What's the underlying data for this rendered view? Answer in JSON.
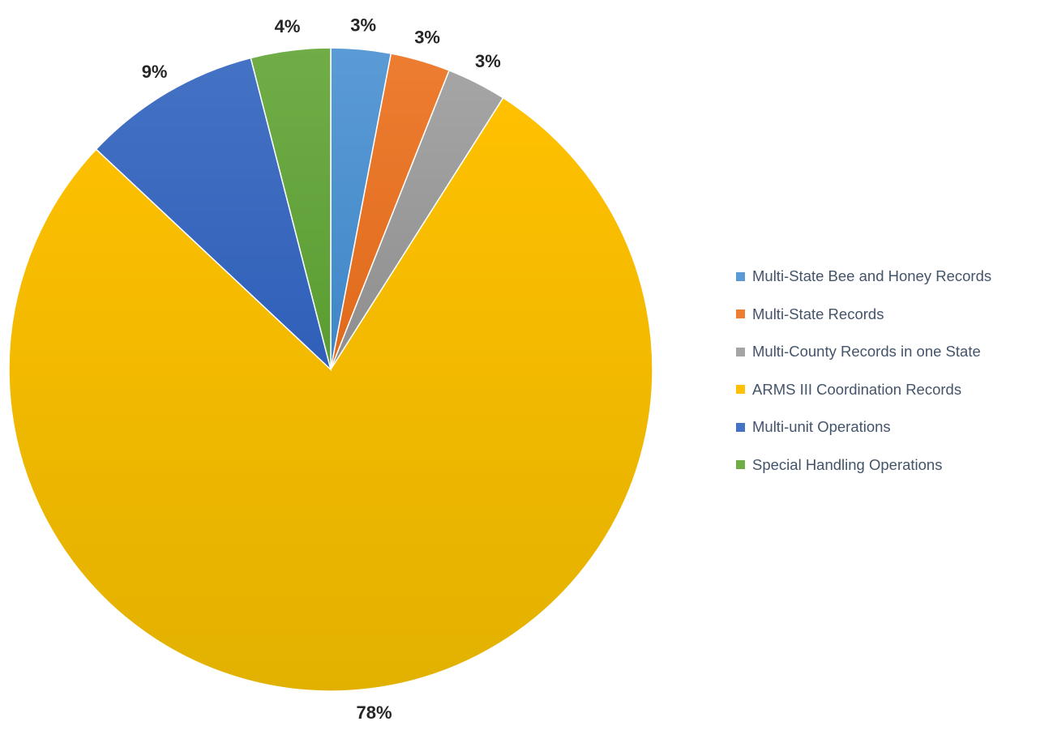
{
  "chart_data": {
    "type": "pie",
    "title": "",
    "legend_position": "right",
    "slices": [
      {
        "label": "Multi-State Bee and Honey Records",
        "value": 3,
        "display": "3%",
        "color": "#5b9bd5",
        "color_dark": "#3f86c8"
      },
      {
        "label": "Multi-State Records",
        "value": 3,
        "display": "3%",
        "color": "#ed7d31",
        "color_dark": "#e06a1b"
      },
      {
        "label": "Multi-County Records in one State",
        "value": 3,
        "display": "3%",
        "color": "#a5a5a5",
        "color_dark": "#8e8e8e"
      },
      {
        "label": "ARMS III Coordination Records",
        "value": 78,
        "display": "78%",
        "color": "#ffc000",
        "color_dark": "#e2b100"
      },
      {
        "label": "Multi-unit Operations",
        "value": 9,
        "display": "9%",
        "color": "#4472c4",
        "color_dark": "#2f5fb8"
      },
      {
        "label": "Special Handling Operations",
        "value": 4,
        "display": "4%",
        "color": "#70ad47",
        "color_dark": "#5a9c32"
      }
    ]
  }
}
